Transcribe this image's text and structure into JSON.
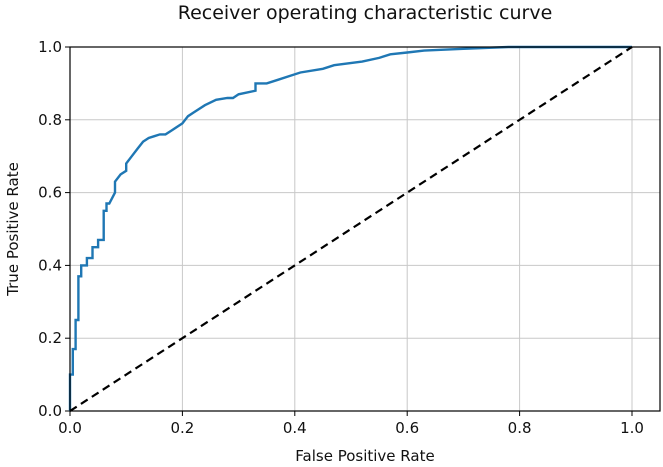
{
  "chart_data": {
    "type": "line",
    "title": "Receiver operating characteristic curve",
    "xlabel": "False Positive Rate",
    "ylabel": "True Positive Rate",
    "xlim": [
      0.0,
      1.0
    ],
    "ylim": [
      0.0,
      1.0
    ],
    "grid": true,
    "x_ticks": [
      "0.0",
      "0.2",
      "0.4",
      "0.6",
      "0.8",
      "1.0"
    ],
    "y_ticks": [
      "0.0",
      "0.2",
      "0.4",
      "0.6",
      "0.8",
      "1.0"
    ],
    "series": [
      {
        "color": "#1f77b4",
        "style": "solid",
        "x": [
          0.0,
          0.0,
          0.005,
          0.005,
          0.01,
          0.01,
          0.015,
          0.015,
          0.02,
          0.02,
          0.03,
          0.03,
          0.04,
          0.04,
          0.05,
          0.05,
          0.06,
          0.06,
          0.065,
          0.065,
          0.07,
          0.08,
          0.08,
          0.09,
          0.1,
          0.1,
          0.11,
          0.12,
          0.13,
          0.14,
          0.15,
          0.16,
          0.17,
          0.18,
          0.2,
          0.21,
          0.22,
          0.24,
          0.26,
          0.28,
          0.29,
          0.3,
          0.33,
          0.33,
          0.35,
          0.37,
          0.39,
          0.41,
          0.45,
          0.47,
          0.52,
          0.55,
          0.57,
          0.6,
          0.63,
          0.7,
          0.78,
          0.85,
          0.9,
          1.0
        ],
        "y": [
          0.0,
          0.1,
          0.1,
          0.17,
          0.17,
          0.25,
          0.25,
          0.37,
          0.37,
          0.4,
          0.4,
          0.42,
          0.42,
          0.45,
          0.45,
          0.47,
          0.47,
          0.55,
          0.55,
          0.57,
          0.57,
          0.6,
          0.63,
          0.65,
          0.66,
          0.68,
          0.7,
          0.72,
          0.74,
          0.75,
          0.755,
          0.76,
          0.76,
          0.77,
          0.79,
          0.81,
          0.82,
          0.84,
          0.855,
          0.86,
          0.86,
          0.87,
          0.88,
          0.9,
          0.9,
          0.91,
          0.92,
          0.93,
          0.94,
          0.95,
          0.96,
          0.97,
          0.98,
          0.985,
          0.99,
          0.995,
          1.0,
          1.0,
          1.0,
          1.0
        ]
      },
      {
        "color": "#000000",
        "style": "dashed",
        "x": [
          0.0,
          1.0
        ],
        "y": [
          0.0,
          1.0
        ]
      }
    ]
  }
}
